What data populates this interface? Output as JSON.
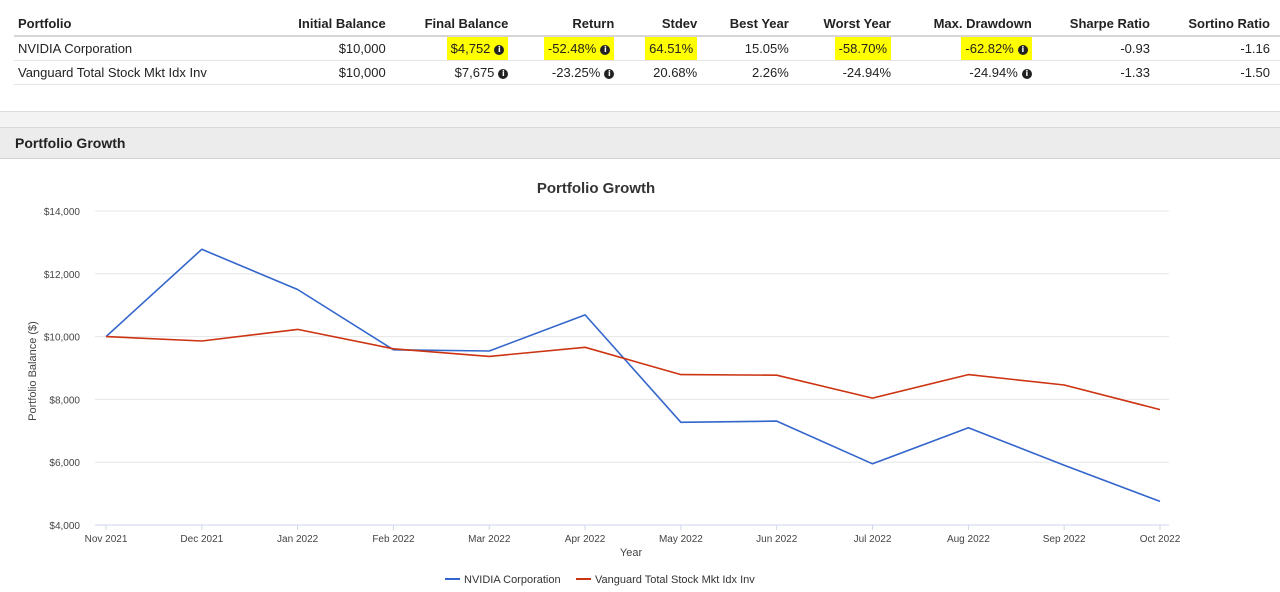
{
  "summary_table": {
    "headers": [
      "Portfolio",
      "Initial Balance",
      "Final Balance",
      "Return",
      "Stdev",
      "Best Year",
      "Worst Year",
      "Max. Drawdown",
      "Sharpe Ratio",
      "Sortino Ratio"
    ],
    "rows": [
      {
        "name": "NVIDIA Corporation",
        "initial": "$10,000",
        "final": "$4,752",
        "return": "-52.48%",
        "stdev": "64.51%",
        "best": "15.05%",
        "worst": "-58.70%",
        "drawdown": "-62.82%",
        "sharpe": "-0.93",
        "sortino": "-1.16"
      },
      {
        "name": "Vanguard Total Stock Mkt Idx Inv",
        "initial": "$10,000",
        "final": "$7,675",
        "return": "-23.25%",
        "stdev": "20.68%",
        "best": "2.26%",
        "worst": "-24.94%",
        "drawdown": "-24.94%",
        "sharpe": "-1.33",
        "sortino": "-1.50"
      }
    ],
    "highlight_color": "#ffff00",
    "info_icon": "info-circle-icon"
  },
  "growth_panel": {
    "header": "Portfolio Growth"
  },
  "chart_data": {
    "type": "line",
    "title": "Portfolio Growth",
    "xlabel": "Year",
    "ylabel": "Portfolio Balance ($)",
    "categories": [
      "Nov 2021",
      "Dec 2021",
      "Jan 2022",
      "Feb 2022",
      "Mar 2022",
      "Apr 2022",
      "May 2022",
      "Jun 2022",
      "Jul 2022",
      "Aug 2022",
      "Sep 2022",
      "Oct 2022"
    ],
    "y_ticks": [
      "$4,000",
      "$6,000",
      "$8,000",
      "$10,000",
      "$12,000",
      "$14,000"
    ],
    "ylim": [
      4000,
      14000
    ],
    "grid": true,
    "legend": "bottom-center",
    "series": [
      {
        "name": "NVIDIA Corporation",
        "color": "#3366cc",
        "values": [
          10000,
          12780,
          11500,
          9580,
          9540,
          10690,
          7270,
          7310,
          5950,
          7100,
          5900,
          4752
        ]
      },
      {
        "name": "Vanguard Total Stock Mkt Idx Inv",
        "color": "#cc3311",
        "values": [
          10000,
          9860,
          10230,
          9610,
          9370,
          9660,
          8790,
          8770,
          8040,
          8790,
          8460,
          7675
        ]
      }
    ]
  }
}
